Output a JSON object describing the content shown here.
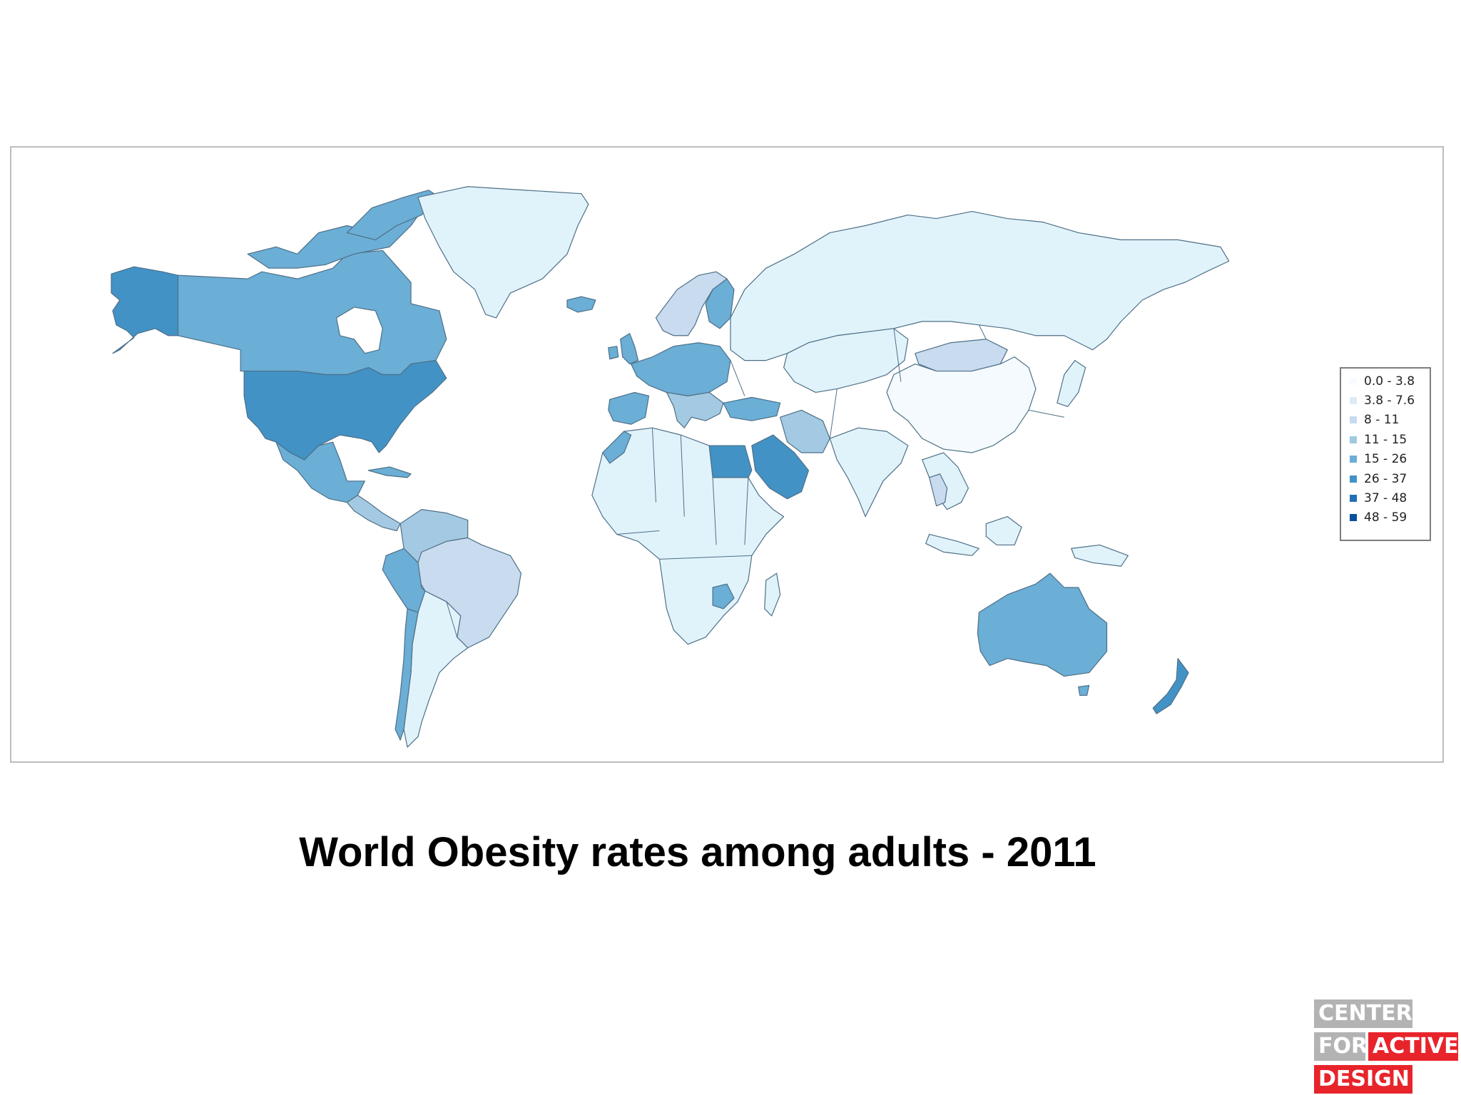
{
  "title": "World Obesity rates among adults - 2011",
  "legend": {
    "items": [
      {
        "label": "0.0 - 3.8",
        "color": "#f7fbff"
      },
      {
        "label": "3.8 - 7.6",
        "color": "#deebf7"
      },
      {
        "label": "8 - 11",
        "color": "#c6dbef"
      },
      {
        "label": "11 - 15",
        "color": "#9ecae1"
      },
      {
        "label": "15 - 26",
        "color": "#6baed6"
      },
      {
        "label": "26 - 37",
        "color": "#4292c6"
      },
      {
        "label": "37 - 48",
        "color": "#2171b5"
      },
      {
        "label": "48 - 59",
        "color": "#08519c"
      }
    ]
  },
  "map_colors": {
    "low": "#e0f3fb",
    "very_low": "#f4fafe",
    "light": "#c8dbef",
    "mid_light": "#a4c9e2",
    "mid": "#6baed6",
    "mid_dark": "#4292c6"
  },
  "logo": {
    "line1": "CENTER",
    "line2a": "FOR",
    "line2b": "ACTIVE",
    "line3": "DESIGN",
    "gray": "#b3b3b3",
    "red": "#e8242b"
  }
}
